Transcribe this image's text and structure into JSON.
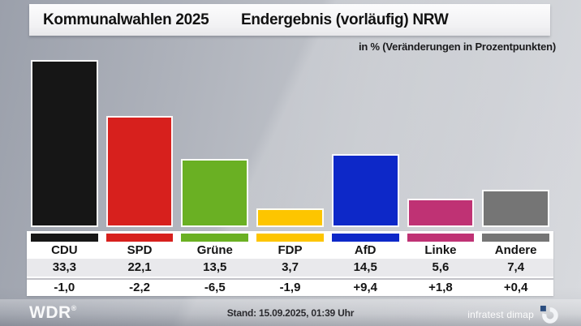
{
  "header": {
    "title_left": "Kommunalwahlen 2025",
    "title_right": "Endergebnis (vorläufig) NRW"
  },
  "subtitle": "in % (Veränderungen in Prozentpunkten)",
  "chart_data": {
    "type": "bar",
    "title": "Kommunalwahlen 2025 — Endergebnis (vorläufig) NRW",
    "unit_note": "in % (Veränderungen in Prozentpunkten)",
    "categories": [
      "CDU",
      "SPD",
      "Grüne",
      "FDP",
      "AfD",
      "Linke",
      "Andere"
    ],
    "values": [
      33.3,
      22.1,
      13.5,
      3.7,
      14.5,
      5.6,
      7.4
    ],
    "value_labels": [
      "33,3",
      "22,1",
      "13,5",
      "3,7",
      "14,5",
      "5,6",
      "7,4"
    ],
    "change_labels": [
      "-1,0",
      "-2,2",
      "-6,5",
      "-1,9",
      "+9,4",
      "+1,8",
      "+0,4"
    ],
    "bar_colors": [
      "#161616",
      "#d7201d",
      "#6ab023",
      "#fdc500",
      "#0d28c8",
      "#bf3274",
      "#757575"
    ],
    "ylim": [
      0,
      34
    ],
    "grid": false,
    "legend_position": "none"
  },
  "footer": {
    "station": "WDR",
    "reg": "®",
    "stand": "Stand: 15.09.2025, 01:39 Uhr",
    "source": "infratest dimap"
  },
  "colors": {
    "panel_bg": "#ffffff",
    "values_row_bg": "#e9e9ec",
    "logo_square": "#2a4d7f"
  }
}
